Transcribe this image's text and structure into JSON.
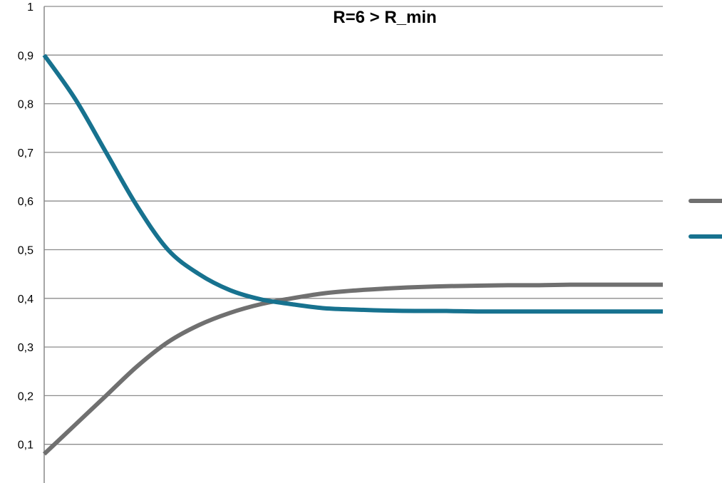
{
  "chart_data": {
    "type": "line",
    "title": "R=6 > R_min",
    "xlabel": "",
    "ylabel": "",
    "ylim": [
      0,
      1
    ],
    "xlim": [
      0,
      100
    ],
    "y_ticks": [
      "0,1",
      "0,2",
      "0,3",
      "0,4",
      "0,5",
      "0,6",
      "0,7",
      "0,8",
      "0,9",
      "1"
    ],
    "y_tick_values": [
      0.1,
      0.2,
      0.3,
      0.4,
      0.5,
      0.6,
      0.7,
      0.8,
      0.9,
      1.0
    ],
    "grid": true,
    "legend_position": "right",
    "x": [
      0,
      5,
      10,
      15,
      20,
      25,
      30,
      35,
      40,
      45,
      50,
      55,
      60,
      65,
      70,
      75,
      80,
      85,
      90,
      95,
      100
    ],
    "series": [
      {
        "color": "#707070",
        "values": [
          0.08,
          0.14,
          0.2,
          0.26,
          0.31,
          0.345,
          0.37,
          0.388,
          0.4,
          0.41,
          0.416,
          0.42,
          0.423,
          0.425,
          0.426,
          0.427,
          0.427,
          0.428,
          0.428,
          0.428,
          0.428
        ]
      },
      {
        "color": "#17728f",
        "values": [
          0.9,
          0.81,
          0.7,
          0.59,
          0.5,
          0.45,
          0.417,
          0.398,
          0.388,
          0.38,
          0.377,
          0.375,
          0.374,
          0.374,
          0.373,
          0.373,
          0.373,
          0.373,
          0.373,
          0.373,
          0.373
        ]
      }
    ]
  }
}
